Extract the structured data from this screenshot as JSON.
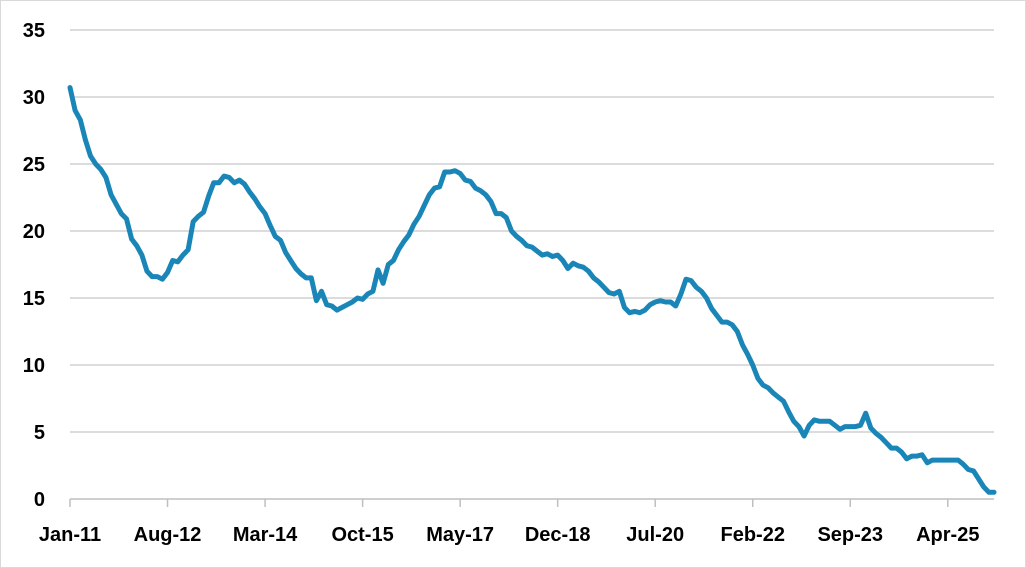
{
  "chart_data": {
    "type": "line",
    "title": "",
    "xlabel": "",
    "ylabel": "",
    "ylim": [
      0,
      35
    ],
    "yticks": [
      "0",
      "5",
      "10",
      "15",
      "20",
      "25",
      "30",
      "35"
    ],
    "xlim": [
      "2011-01",
      "2026-01"
    ],
    "xticks": [
      {
        "label": "Jan-11",
        "date": "2011-01"
      },
      {
        "label": "Aug-12",
        "date": "2012-08"
      },
      {
        "label": "Mar-14",
        "date": "2014-03"
      },
      {
        "label": "Oct-15",
        "date": "2015-10"
      },
      {
        "label": "May-17",
        "date": "2017-05"
      },
      {
        "label": "Dec-18",
        "date": "2018-12"
      },
      {
        "label": "Jul-20",
        "date": "2020-07"
      },
      {
        "label": "Feb-22",
        "date": "2022-02"
      },
      {
        "label": "Sep-23",
        "date": "2023-09"
      },
      {
        "label": "Apr-25",
        "date": "2025-04"
      }
    ],
    "grid": "horizontal",
    "legend": "none",
    "series": [
      {
        "color": "#1a86b8",
        "points": [
          [
            "2011-01",
            30.7
          ],
          [
            "2011-02",
            29.0
          ],
          [
            "2011-03",
            28.3
          ],
          [
            "2011-04",
            26.8
          ],
          [
            "2011-05",
            25.6
          ],
          [
            "2011-06",
            25.0
          ],
          [
            "2011-07",
            24.6
          ],
          [
            "2011-08",
            24.0
          ],
          [
            "2011-09",
            22.7
          ],
          [
            "2011-10",
            22.0
          ],
          [
            "2011-11",
            21.3
          ],
          [
            "2011-12",
            20.9
          ],
          [
            "2012-01",
            19.4
          ],
          [
            "2012-02",
            18.9
          ],
          [
            "2012-03",
            18.2
          ],
          [
            "2012-04",
            17.0
          ],
          [
            "2012-05",
            16.6
          ],
          [
            "2012-06",
            16.6
          ],
          [
            "2012-07",
            16.4
          ],
          [
            "2012-08",
            16.9
          ],
          [
            "2012-09",
            17.8
          ],
          [
            "2012-10",
            17.7
          ],
          [
            "2012-11",
            18.2
          ],
          [
            "2012-12",
            18.6
          ],
          [
            "2013-01",
            20.7
          ],
          [
            "2013-02",
            21.1
          ],
          [
            "2013-03",
            21.4
          ],
          [
            "2013-04",
            22.6
          ],
          [
            "2013-05",
            23.6
          ],
          [
            "2013-06",
            23.6
          ],
          [
            "2013-07",
            24.1
          ],
          [
            "2013-08",
            24.0
          ],
          [
            "2013-09",
            23.6
          ],
          [
            "2013-10",
            23.8
          ],
          [
            "2013-11",
            23.5
          ],
          [
            "2013-12",
            22.9
          ],
          [
            "2014-01",
            22.4
          ],
          [
            "2014-02",
            21.8
          ],
          [
            "2014-03",
            21.3
          ],
          [
            "2014-04",
            20.4
          ],
          [
            "2014-05",
            19.6
          ],
          [
            "2014-06",
            19.3
          ],
          [
            "2014-07",
            18.4
          ],
          [
            "2014-08",
            17.8
          ],
          [
            "2014-09",
            17.2
          ],
          [
            "2014-10",
            16.8
          ],
          [
            "2014-11",
            16.5
          ],
          [
            "2014-12",
            16.5
          ],
          [
            "2015-01",
            14.8
          ],
          [
            "2015-02",
            15.5
          ],
          [
            "2015-03",
            14.5
          ],
          [
            "2015-04",
            14.4
          ],
          [
            "2015-05",
            14.1
          ],
          [
            "2015-06",
            14.3
          ],
          [
            "2015-07",
            14.5
          ],
          [
            "2015-08",
            14.7
          ],
          [
            "2015-09",
            15.0
          ],
          [
            "2015-10",
            14.9
          ],
          [
            "2015-11",
            15.3
          ],
          [
            "2015-12",
            15.5
          ],
          [
            "2016-01",
            17.1
          ],
          [
            "2016-02",
            16.1
          ],
          [
            "2016-03",
            17.5
          ],
          [
            "2016-04",
            17.8
          ],
          [
            "2016-05",
            18.6
          ],
          [
            "2016-06",
            19.2
          ],
          [
            "2016-07",
            19.7
          ],
          [
            "2016-08",
            20.5
          ],
          [
            "2016-09",
            21.1
          ],
          [
            "2016-10",
            21.9
          ],
          [
            "2016-11",
            22.7
          ],
          [
            "2016-12",
            23.2
          ],
          [
            "2017-01",
            23.3
          ],
          [
            "2017-02",
            24.4
          ],
          [
            "2017-03",
            24.4
          ],
          [
            "2017-04",
            24.5
          ],
          [
            "2017-05",
            24.3
          ],
          [
            "2017-06",
            23.8
          ],
          [
            "2017-07",
            23.7
          ],
          [
            "2017-08",
            23.2
          ],
          [
            "2017-09",
            23.0
          ],
          [
            "2017-10",
            22.7
          ],
          [
            "2017-11",
            22.2
          ],
          [
            "2017-12",
            21.3
          ],
          [
            "2018-01",
            21.3
          ],
          [
            "2018-02",
            21.0
          ],
          [
            "2018-03",
            20.0
          ],
          [
            "2018-04",
            19.6
          ],
          [
            "2018-05",
            19.3
          ],
          [
            "2018-06",
            18.9
          ],
          [
            "2018-07",
            18.8
          ],
          [
            "2018-08",
            18.5
          ],
          [
            "2018-09",
            18.2
          ],
          [
            "2018-10",
            18.3
          ],
          [
            "2018-11",
            18.1
          ],
          [
            "2018-12",
            18.2
          ],
          [
            "2019-01",
            17.8
          ],
          [
            "2019-02",
            17.2
          ],
          [
            "2019-03",
            17.6
          ],
          [
            "2019-04",
            17.4
          ],
          [
            "2019-05",
            17.3
          ],
          [
            "2019-06",
            17.0
          ],
          [
            "2019-07",
            16.5
          ],
          [
            "2019-08",
            16.2
          ],
          [
            "2019-09",
            15.8
          ],
          [
            "2019-10",
            15.4
          ],
          [
            "2019-11",
            15.3
          ],
          [
            "2019-12",
            15.5
          ],
          [
            "2020-01",
            14.3
          ],
          [
            "2020-02",
            13.9
          ],
          [
            "2020-03",
            14.0
          ],
          [
            "2020-04",
            13.9
          ],
          [
            "2020-05",
            14.1
          ],
          [
            "2020-06",
            14.5
          ],
          [
            "2020-07",
            14.7
          ],
          [
            "2020-08",
            14.8
          ],
          [
            "2020-09",
            14.7
          ],
          [
            "2020-10",
            14.7
          ],
          [
            "2020-11",
            14.4
          ],
          [
            "2020-12",
            15.3
          ],
          [
            "2021-01",
            16.4
          ],
          [
            "2021-02",
            16.3
          ],
          [
            "2021-03",
            15.8
          ],
          [
            "2021-04",
            15.5
          ],
          [
            "2021-05",
            15.0
          ],
          [
            "2021-06",
            14.2
          ],
          [
            "2021-07",
            13.7
          ],
          [
            "2021-08",
            13.2
          ],
          [
            "2021-09",
            13.2
          ],
          [
            "2021-10",
            13.0
          ],
          [
            "2021-11",
            12.5
          ],
          [
            "2021-12",
            11.5
          ],
          [
            "2022-01",
            10.8
          ],
          [
            "2022-02",
            10.0
          ],
          [
            "2022-03",
            9.0
          ],
          [
            "2022-04",
            8.5
          ],
          [
            "2022-05",
            8.3
          ],
          [
            "2022-06",
            7.9
          ],
          [
            "2022-07",
            7.6
          ],
          [
            "2022-08",
            7.3
          ],
          [
            "2022-09",
            6.5
          ],
          [
            "2022-10",
            5.8
          ],
          [
            "2022-11",
            5.4
          ],
          [
            "2022-12",
            4.7
          ],
          [
            "2023-01",
            5.5
          ],
          [
            "2023-02",
            5.9
          ],
          [
            "2023-03",
            5.8
          ],
          [
            "2023-04",
            5.8
          ],
          [
            "2023-05",
            5.8
          ],
          [
            "2023-06",
            5.5
          ],
          [
            "2023-07",
            5.2
          ],
          [
            "2023-08",
            5.4
          ],
          [
            "2023-09",
            5.4
          ],
          [
            "2023-10",
            5.4
          ],
          [
            "2023-11",
            5.5
          ],
          [
            "2023-12",
            6.4
          ],
          [
            "2024-01",
            5.3
          ],
          [
            "2024-02",
            4.9
          ],
          [
            "2024-03",
            4.6
          ],
          [
            "2024-04",
            4.2
          ],
          [
            "2024-05",
            3.8
          ],
          [
            "2024-06",
            3.8
          ],
          [
            "2024-07",
            3.5
          ],
          [
            "2024-08",
            3.0
          ],
          [
            "2024-09",
            3.2
          ],
          [
            "2024-10",
            3.2
          ],
          [
            "2024-11",
            3.3
          ],
          [
            "2024-12",
            2.7
          ],
          [
            "2025-01",
            2.9
          ],
          [
            "2025-02",
            2.9
          ],
          [
            "2025-03",
            2.9
          ],
          [
            "2025-04",
            2.9
          ],
          [
            "2025-05",
            2.9
          ],
          [
            "2025-06",
            2.9
          ],
          [
            "2025-07",
            2.6
          ],
          [
            "2025-08",
            2.2
          ],
          [
            "2025-09",
            2.1
          ],
          [
            "2025-10",
            1.5
          ],
          [
            "2025-11",
            0.9
          ],
          [
            "2025-12",
            0.5
          ],
          [
            "2026-01",
            0.5
          ]
        ]
      }
    ]
  }
}
